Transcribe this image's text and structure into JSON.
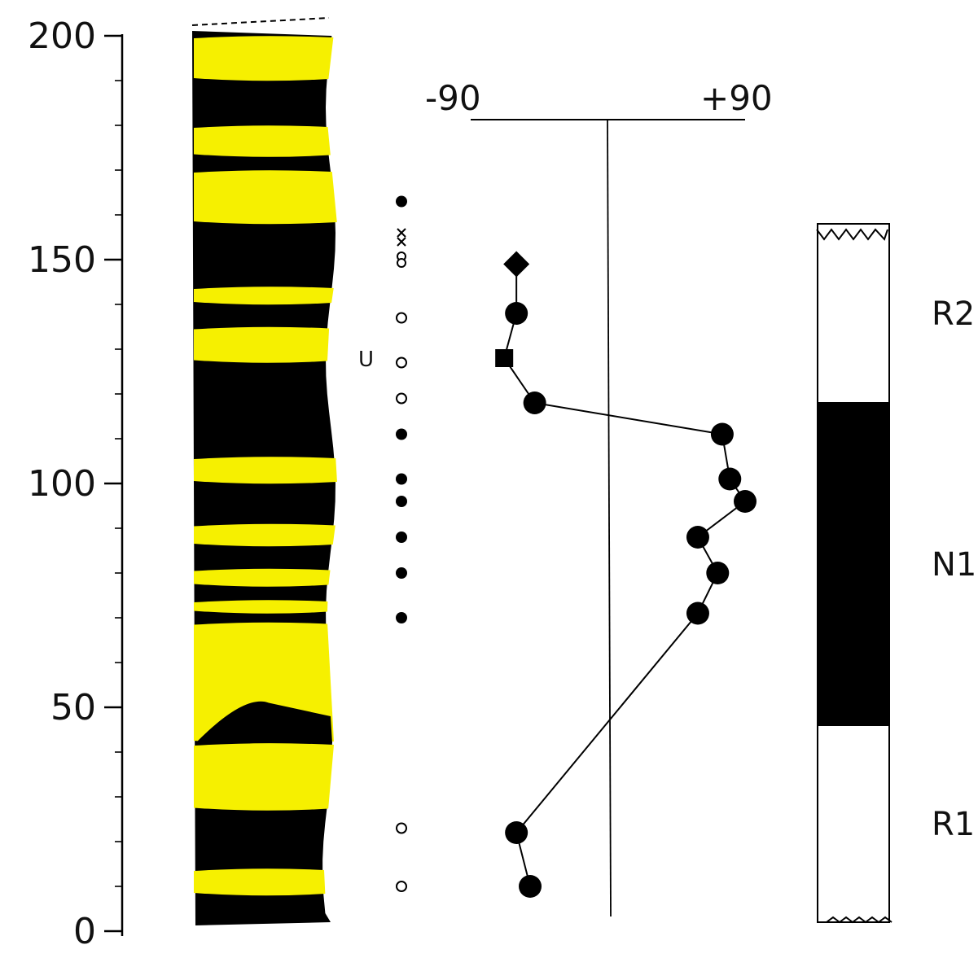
{
  "depth_axis": {
    "tick_labels": [
      "0",
      "50",
      "100",
      "150",
      "200"
    ],
    "range": [
      0,
      200
    ],
    "major_step": 50,
    "minor_step": 10
  },
  "lithology": {
    "colors": {
      "sandstone": "#f6f000",
      "mudstone": "#000000"
    },
    "sandstone_beds": [
      [
        190,
        200
      ],
      [
        173,
        180
      ],
      [
        158,
        170
      ],
      [
        140,
        144
      ],
      [
        127,
        135
      ],
      [
        100,
        106
      ],
      [
        86,
        91
      ],
      [
        77,
        81
      ],
      [
        71,
        74
      ],
      [
        42,
        69
      ],
      [
        27,
        42
      ],
      [
        8,
        14
      ]
    ],
    "unconformity_label": "U",
    "unconformity_depth": 128
  },
  "samples": {
    "filled": [
      163,
      111,
      101,
      96,
      88,
      80,
      70
    ],
    "open": [
      137,
      127,
      119,
      23,
      10
    ],
    "crosses": [
      156,
      154
    ],
    "double_circle": [
      150
    ]
  },
  "inclination_chart": {
    "tick_labels": [
      "-90",
      "+90"
    ],
    "xlim": [
      -90,
      90
    ],
    "points": [
      {
        "inclination": -60,
        "depth": 149,
        "marker": "diamond"
      },
      {
        "inclination": -60,
        "depth": 138,
        "marker": "circle"
      },
      {
        "inclination": -68,
        "depth": 128,
        "marker": "square"
      },
      {
        "inclination": -48,
        "depth": 118,
        "marker": "circle"
      },
      {
        "inclination": 75,
        "depth": 111,
        "marker": "circle"
      },
      {
        "inclination": 80,
        "depth": 101,
        "marker": "circle"
      },
      {
        "inclination": 90,
        "depth": 96,
        "marker": "circle"
      },
      {
        "inclination": 59,
        "depth": 88,
        "marker": "circle"
      },
      {
        "inclination": 72,
        "depth": 80,
        "marker": "circle"
      },
      {
        "inclination": 59,
        "depth": 71,
        "marker": "circle"
      },
      {
        "inclination": -60,
        "depth": 22,
        "marker": "circle"
      },
      {
        "inclination": -51,
        "depth": 10,
        "marker": "circle"
      }
    ]
  },
  "polarity_column": {
    "zones": [
      {
        "label": "R2",
        "top": 158,
        "bottom": 118,
        "polarity": "reversed"
      },
      {
        "label": "N1",
        "top": 118,
        "bottom": 46,
        "polarity": "normal"
      },
      {
        "label": "R1",
        "top": 46,
        "bottom": 2,
        "polarity": "reversed"
      }
    ]
  }
}
